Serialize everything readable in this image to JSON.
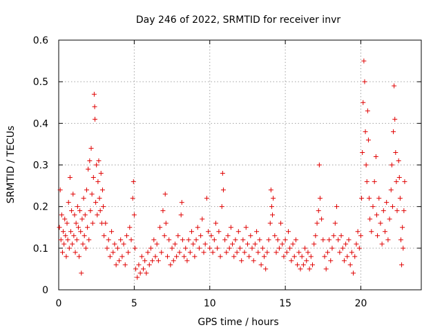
{
  "chart_data": {
    "type": "scatter",
    "title": "Day 246 of 2022, SRMTID for receiver invr",
    "xlabel": "GPS time / hours",
    "ylabel": "SRMTID / TECUs",
    "xlim": [
      0,
      24
    ],
    "ylim": [
      0,
      0.6
    ],
    "xticks": [
      0,
      5,
      10,
      15,
      20
    ],
    "yticks": [
      0,
      0.1,
      0.2,
      0.3,
      0.4,
      0.5,
      0.6
    ],
    "xtick_labels": [
      "0",
      "5",
      "10",
      "15",
      "20"
    ],
    "ytick_labels": [
      "0",
      "0.1",
      "0.2",
      "0.3",
      "0.4",
      "0.5",
      "0.6"
    ],
    "grid": true,
    "marker": "+",
    "color": "#e00000",
    "series": [
      {
        "name": "SRMTID",
        "points": [
          [
            0.05,
            0.15
          ],
          [
            0.1,
            0.24
          ],
          [
            0.15,
            0.12
          ],
          [
            0.2,
            0.18
          ],
          [
            0.25,
            0.09
          ],
          [
            0.3,
            0.14
          ],
          [
            0.35,
            0.11
          ],
          [
            0.4,
            0.17
          ],
          [
            0.45,
            0.13
          ],
          [
            0.5,
            0.08
          ],
          [
            0.55,
            0.16
          ],
          [
            0.6,
            0.12
          ],
          [
            0.65,
            0.21
          ],
          [
            0.7,
            0.1
          ],
          [
            0.75,
            0.27
          ],
          [
            0.8,
            0.14
          ],
          [
            0.85,
            0.19
          ],
          [
            0.9,
            0.11
          ],
          [
            0.95,
            0.23
          ],
          [
            1.0,
            0.13
          ],
          [
            1.05,
            0.18
          ],
          [
            1.1,
            0.09
          ],
          [
            1.15,
            0.16
          ],
          [
            1.2,
            0.12
          ],
          [
            1.25,
            0.2
          ],
          [
            1.3,
            0.15
          ],
          [
            1.35,
            0.08
          ],
          [
            1.4,
            0.19
          ],
          [
            1.45,
            0.14
          ],
          [
            1.5,
            0.04
          ],
          [
            1.55,
            0.17
          ],
          [
            1.6,
            0.11
          ],
          [
            1.65,
            0.22
          ],
          [
            1.7,
            0.13
          ],
          [
            1.75,
            0.18
          ],
          [
            1.8,
            0.1
          ],
          [
            1.85,
            0.24
          ],
          [
            1.9,
            0.15
          ],
          [
            1.95,
            0.29
          ],
          [
            2.0,
            0.12
          ],
          [
            2.05,
            0.31
          ],
          [
            2.1,
            0.19
          ],
          [
            2.15,
            0.34
          ],
          [
            2.2,
            0.23
          ],
          [
            2.25,
            0.16
          ],
          [
            2.3,
            0.27
          ],
          [
            2.35,
            0.47
          ],
          [
            2.38,
            0.44
          ],
          [
            2.4,
            0.41
          ],
          [
            2.45,
            0.21
          ],
          [
            2.5,
            0.3
          ],
          [
            2.55,
            0.18
          ],
          [
            2.6,
            0.26
          ],
          [
            2.65,
            0.31
          ],
          [
            2.7,
            0.22
          ],
          [
            2.75,
            0.19
          ],
          [
            2.8,
            0.28
          ],
          [
            2.85,
            0.16
          ],
          [
            2.9,
            0.24
          ],
          [
            2.95,
            0.2
          ],
          [
            3.0,
            0.13
          ],
          [
            3.1,
            0.16
          ],
          [
            3.2,
            0.1
          ],
          [
            3.3,
            0.12
          ],
          [
            3.4,
            0.08
          ],
          [
            3.5,
            0.14
          ],
          [
            3.6,
            0.09
          ],
          [
            3.7,
            0.11
          ],
          [
            3.8,
            0.06
          ],
          [
            3.9,
            0.1
          ],
          [
            4.0,
            0.07
          ],
          [
            4.1,
            0.12
          ],
          [
            4.2,
            0.08
          ],
          [
            4.3,
            0.11
          ],
          [
            4.4,
            0.06
          ],
          [
            4.5,
            0.13
          ],
          [
            4.6,
            0.09
          ],
          [
            4.7,
            0.15
          ],
          [
            4.8,
            0.12
          ],
          [
            4.9,
            0.22
          ],
          [
            4.95,
            0.26
          ],
          [
            5.0,
            0.18
          ],
          [
            5.05,
            0.1
          ],
          [
            5.1,
            0.05
          ],
          [
            5.2,
            0.03
          ],
          [
            5.3,
            0.06
          ],
          [
            5.4,
            0.04
          ],
          [
            5.5,
            0.08
          ],
          [
            5.6,
            0.05
          ],
          [
            5.7,
            0.07
          ],
          [
            5.8,
            0.04
          ],
          [
            5.9,
            0.09
          ],
          [
            6.0,
            0.06
          ],
          [
            6.1,
            0.1
          ],
          [
            6.2,
            0.07
          ],
          [
            6.3,
            0.12
          ],
          [
            6.4,
            0.08
          ],
          [
            6.5,
            0.11
          ],
          [
            6.6,
            0.07
          ],
          [
            6.7,
            0.15
          ],
          [
            6.8,
            0.09
          ],
          [
            6.9,
            0.19
          ],
          [
            7.0,
            0.13
          ],
          [
            7.05,
            0.23
          ],
          [
            7.1,
            0.16
          ],
          [
            7.2,
            0.08
          ],
          [
            7.3,
            0.12
          ],
          [
            7.4,
            0.06
          ],
          [
            7.5,
            0.1
          ],
          [
            7.6,
            0.07
          ],
          [
            7.7,
            0.11
          ],
          [
            7.8,
            0.08
          ],
          [
            7.9,
            0.13
          ],
          [
            8.0,
            0.09
          ],
          [
            8.1,
            0.18
          ],
          [
            8.15,
            0.21
          ],
          [
            8.2,
            0.12
          ],
          [
            8.3,
            0.08
          ],
          [
            8.4,
            0.1
          ],
          [
            8.5,
            0.07
          ],
          [
            8.6,
            0.12
          ],
          [
            8.7,
            0.09
          ],
          [
            8.8,
            0.14
          ],
          [
            8.9,
            0.11
          ],
          [
            9.0,
            0.08
          ],
          [
            9.1,
            0.12
          ],
          [
            9.2,
            0.15
          ],
          [
            9.3,
            0.1
          ],
          [
            9.4,
            0.13
          ],
          [
            9.5,
            0.17
          ],
          [
            9.6,
            0.09
          ],
          [
            9.7,
            0.11
          ],
          [
            9.8,
            0.22
          ],
          [
            9.9,
            0.14
          ],
          [
            10.0,
            0.1
          ],
          [
            10.1,
            0.13
          ],
          [
            10.2,
            0.09
          ],
          [
            10.3,
            0.12
          ],
          [
            10.4,
            0.16
          ],
          [
            10.5,
            0.1
          ],
          [
            10.6,
            0.14
          ],
          [
            10.7,
            0.08
          ],
          [
            10.8,
            0.2
          ],
          [
            10.85,
            0.28
          ],
          [
            10.9,
            0.24
          ],
          [
            11.0,
            0.12
          ],
          [
            11.1,
            0.09
          ],
          [
            11.2,
            0.13
          ],
          [
            11.3,
            0.1
          ],
          [
            11.4,
            0.15
          ],
          [
            11.5,
            0.11
          ],
          [
            11.6,
            0.08
          ],
          [
            11.7,
            0.12
          ],
          [
            11.8,
            0.09
          ],
          [
            11.9,
            0.14
          ],
          [
            12.0,
            0.1
          ],
          [
            12.1,
            0.07
          ],
          [
            12.2,
            0.12
          ],
          [
            12.3,
            0.09
          ],
          [
            12.4,
            0.15
          ],
          [
            12.5,
            0.11
          ],
          [
            12.6,
            0.08
          ],
          [
            12.7,
            0.13
          ],
          [
            12.8,
            0.1
          ],
          [
            12.9,
            0.07
          ],
          [
            13.0,
            0.11
          ],
          [
            13.1,
            0.14
          ],
          [
            13.2,
            0.09
          ],
          [
            13.3,
            0.12
          ],
          [
            13.4,
            0.06
          ],
          [
            13.5,
            0.1
          ],
          [
            13.6,
            0.08
          ],
          [
            13.7,
            0.05
          ],
          [
            13.8,
            0.09
          ],
          [
            13.9,
            0.12
          ],
          [
            14.0,
            0.16
          ],
          [
            14.05,
            0.24
          ],
          [
            14.1,
            0.2
          ],
          [
            14.15,
            0.18
          ],
          [
            14.2,
            0.22
          ],
          [
            14.3,
            0.13
          ],
          [
            14.4,
            0.09
          ],
          [
            14.5,
            0.12
          ],
          [
            14.6,
            0.1
          ],
          [
            14.7,
            0.16
          ],
          [
            14.8,
            0.11
          ],
          [
            14.9,
            0.08
          ],
          [
            15.0,
            0.12
          ],
          [
            15.1,
            0.09
          ],
          [
            15.2,
            0.14
          ],
          [
            15.3,
            0.1
          ],
          [
            15.4,
            0.07
          ],
          [
            15.5,
            0.11
          ],
          [
            15.6,
            0.08
          ],
          [
            15.7,
            0.12
          ],
          [
            15.8,
            0.06
          ],
          [
            15.9,
            0.09
          ],
          [
            16.0,
            0.05
          ],
          [
            16.1,
            0.08
          ],
          [
            16.2,
            0.06
          ],
          [
            16.3,
            0.1
          ],
          [
            16.4,
            0.07
          ],
          [
            16.5,
            0.09
          ],
          [
            16.6,
            0.05
          ],
          [
            16.7,
            0.08
          ],
          [
            16.8,
            0.06
          ],
          [
            16.9,
            0.11
          ],
          [
            17.0,
            0.13
          ],
          [
            17.1,
            0.16
          ],
          [
            17.2,
            0.19
          ],
          [
            17.25,
            0.3
          ],
          [
            17.3,
            0.22
          ],
          [
            17.4,
            0.17
          ],
          [
            17.5,
            0.12
          ],
          [
            17.6,
            0.08
          ],
          [
            17.7,
            0.05
          ],
          [
            17.8,
            0.09
          ],
          [
            17.9,
            0.12
          ],
          [
            18.0,
            0.07
          ],
          [
            18.1,
            0.1
          ],
          [
            18.2,
            0.13
          ],
          [
            18.3,
            0.16
          ],
          [
            18.4,
            0.2
          ],
          [
            18.5,
            0.12
          ],
          [
            18.6,
            0.09
          ],
          [
            18.7,
            0.13
          ],
          [
            18.8,
            0.1
          ],
          [
            18.9,
            0.07
          ],
          [
            19.0,
            0.11
          ],
          [
            19.1,
            0.08
          ],
          [
            19.2,
            0.12
          ],
          [
            19.3,
            0.06
          ],
          [
            19.4,
            0.09
          ],
          [
            19.5,
            0.04
          ],
          [
            19.6,
            0.08
          ],
          [
            19.7,
            0.11
          ],
          [
            19.8,
            0.14
          ],
          [
            19.9,
            0.1
          ],
          [
            20.0,
            0.13
          ],
          [
            20.05,
            0.22
          ],
          [
            20.1,
            0.33
          ],
          [
            20.15,
            0.45
          ],
          [
            20.2,
            0.55
          ],
          [
            20.25,
            0.5
          ],
          [
            20.3,
            0.38
          ],
          [
            20.35,
            0.3
          ],
          [
            20.4,
            0.26
          ],
          [
            20.45,
            0.43
          ],
          [
            20.5,
            0.36
          ],
          [
            20.55,
            0.22
          ],
          [
            20.6,
            0.17
          ],
          [
            20.7,
            0.14
          ],
          [
            20.8,
            0.2
          ],
          [
            20.9,
            0.26
          ],
          [
            21.0,
            0.32
          ],
          [
            21.05,
            0.18
          ],
          [
            21.1,
            0.13
          ],
          [
            21.2,
            0.22
          ],
          [
            21.3,
            0.16
          ],
          [
            21.4,
            0.11
          ],
          [
            21.5,
            0.19
          ],
          [
            21.6,
            0.14
          ],
          [
            21.7,
            0.21
          ],
          [
            21.8,
            0.12
          ],
          [
            21.9,
            0.17
          ],
          [
            22.0,
            0.24
          ],
          [
            22.05,
            0.3
          ],
          [
            22.1,
            0.2
          ],
          [
            22.15,
            0.38
          ],
          [
            22.2,
            0.49
          ],
          [
            22.25,
            0.41
          ],
          [
            22.3,
            0.33
          ],
          [
            22.35,
            0.26
          ],
          [
            22.4,
            0.19
          ],
          [
            22.5,
            0.31
          ],
          [
            22.55,
            0.27
          ],
          [
            22.6,
            0.22
          ],
          [
            22.65,
            0.12
          ],
          [
            22.7,
            0.06
          ],
          [
            22.75,
            0.15
          ],
          [
            22.8,
            0.1
          ],
          [
            22.85,
            0.19
          ],
          [
            22.9,
            0.26
          ]
        ]
      }
    ]
  }
}
